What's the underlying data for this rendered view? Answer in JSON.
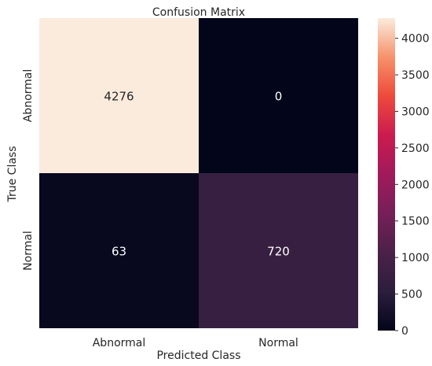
{
  "chart_data": {
    "type": "heatmap",
    "title": "Confusion Matrix",
    "xlabel": "Predicted Class",
    "ylabel": "True Class",
    "x_categories": [
      "Abnormal",
      "Normal"
    ],
    "y_categories": [
      "Abnormal",
      "Normal"
    ],
    "values": [
      [
        4276,
        0
      ],
      [
        63,
        720
      ]
    ],
    "colorbar": {
      "min": 0,
      "max": 4276,
      "ticks": [
        0,
        500,
        1000,
        1500,
        2000,
        2500,
        3000,
        3500,
        4000
      ]
    },
    "colormap": "rocket",
    "colors": {
      "low": "#03051a",
      "high": "#faebdd",
      "text_on_light": "#262626",
      "text_on_dark": "#ffffff"
    }
  }
}
